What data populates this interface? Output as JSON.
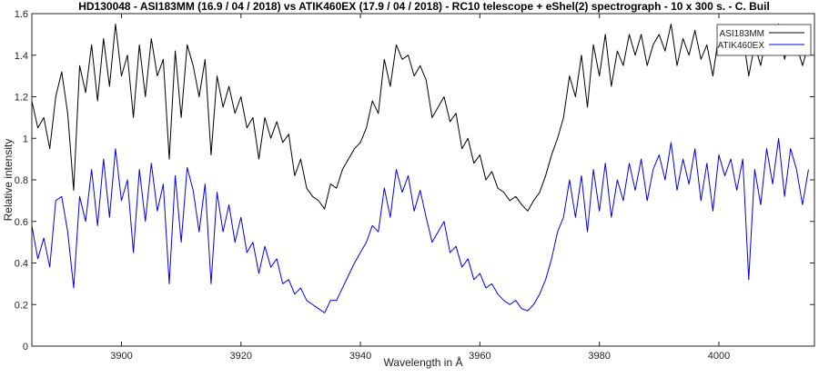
{
  "chart_data": {
    "type": "line",
    "title": "HD130048 - ASI183MM (16.9 / 04 / 2018) vs ATIK460EX (17.9 / 04 / 2018) - RC10 telescope + eShel(2) spectrograph - 10 x 300 s. - C. Buil",
    "xlabel": "Wavelength in Å",
    "ylabel": "Relative intensity",
    "xlim": [
      3885,
      4016
    ],
    "ylim": [
      0,
      1.6
    ],
    "xticks": [
      3900,
      3920,
      3940,
      3960,
      3980,
      4000
    ],
    "yticks": [
      0,
      0.2,
      0.4,
      0.6,
      0.8,
      1,
      1.2,
      1.4,
      1.6
    ],
    "xtick_labels": [
      "3900",
      "3920",
      "3940",
      "3960",
      "3980",
      "4000"
    ],
    "ytick_labels": [
      "0",
      "0.2",
      "0.4",
      "0.6",
      "0.8",
      "1",
      "1.2",
      "1.4",
      "1.6"
    ],
    "grid": false,
    "legend_position": "top-right",
    "series": [
      {
        "name": "ASI183MM",
        "color": "#000000",
        "x": [
          3885,
          3886,
          3887,
          3888,
          3889,
          3890,
          3891,
          3892,
          3893,
          3894,
          3895,
          3896,
          3897,
          3898,
          3899,
          3900,
          3901,
          3902,
          3903,
          3904,
          3905,
          3906,
          3907,
          3908,
          3909,
          3910,
          3911,
          3912,
          3913,
          3914,
          3915,
          3916,
          3917,
          3918,
          3919,
          3920,
          3921,
          3922,
          3923,
          3924,
          3925,
          3926,
          3927,
          3928,
          3929,
          3930,
          3931,
          3932,
          3933,
          3934,
          3935,
          3936,
          3937,
          3938,
          3939,
          3940,
          3941,
          3942,
          3943,
          3944,
          3945,
          3946,
          3947,
          3948,
          3949,
          3950,
          3951,
          3952,
          3953,
          3954,
          3955,
          3956,
          3957,
          3958,
          3959,
          3960,
          3961,
          3962,
          3963,
          3964,
          3965,
          3966,
          3967,
          3968,
          3969,
          3970,
          3971,
          3972,
          3973,
          3974,
          3975,
          3976,
          3977,
          3978,
          3979,
          3980,
          3981,
          3982,
          3983,
          3984,
          3985,
          3986,
          3987,
          3988,
          3989,
          3990,
          3991,
          3992,
          3993,
          3994,
          3995,
          3996,
          3997,
          3998,
          3999,
          4000,
          4001,
          4002,
          4003,
          4004,
          4005,
          4006,
          4007,
          4008,
          4009,
          4010,
          4011,
          4012,
          4013,
          4014,
          4015
        ],
        "values": [
          1.18,
          1.05,
          1.1,
          0.95,
          1.2,
          1.32,
          1.12,
          0.75,
          1.35,
          1.22,
          1.45,
          1.18,
          1.48,
          1.25,
          1.55,
          1.3,
          1.4,
          1.1,
          1.45,
          1.2,
          1.48,
          1.3,
          1.38,
          0.9,
          1.42,
          1.1,
          1.45,
          1.35,
          1.2,
          1.38,
          0.92,
          1.3,
          1.15,
          1.25,
          1.12,
          1.2,
          1.05,
          1.1,
          0.9,
          1.1,
          1.0,
          1.08,
          0.98,
          1.02,
          0.82,
          0.9,
          0.76,
          0.72,
          0.7,
          0.66,
          0.78,
          0.76,
          0.85,
          0.9,
          0.95,
          0.98,
          1.05,
          1.18,
          1.12,
          1.38,
          1.25,
          1.45,
          1.38,
          1.4,
          1.3,
          1.35,
          1.28,
          1.1,
          1.15,
          1.2,
          1.08,
          1.12,
          0.95,
          1.0,
          0.88,
          0.92,
          0.8,
          0.84,
          0.76,
          0.74,
          0.7,
          0.72,
          0.68,
          0.65,
          0.7,
          0.74,
          0.82,
          0.92,
          1.0,
          1.1,
          1.3,
          1.2,
          1.4,
          1.15,
          1.45,
          1.3,
          1.5,
          1.25,
          1.42,
          1.35,
          1.5,
          1.4,
          1.5,
          1.35,
          1.45,
          1.5,
          1.42,
          1.55,
          1.35,
          1.48,
          1.4,
          1.52,
          1.38,
          1.45,
          1.3,
          1.5,
          1.44,
          1.48,
          1.4,
          1.5,
          1.3,
          1.45,
          1.35,
          1.5,
          1.4,
          1.55,
          1.38,
          1.5,
          1.45,
          1.35,
          1.45
        ]
      },
      {
        "name": "ATIK460EX",
        "color": "#0000ee",
        "x": [
          3885,
          3886,
          3887,
          3888,
          3889,
          3890,
          3891,
          3892,
          3893,
          3894,
          3895,
          3896,
          3897,
          3898,
          3899,
          3900,
          3901,
          3902,
          3903,
          3904,
          3905,
          3906,
          3907,
          3908,
          3909,
          3910,
          3911,
          3912,
          3913,
          3914,
          3915,
          3916,
          3917,
          3918,
          3919,
          3920,
          3921,
          3922,
          3923,
          3924,
          3925,
          3926,
          3927,
          3928,
          3929,
          3930,
          3931,
          3932,
          3933,
          3934,
          3935,
          3936,
          3937,
          3938,
          3939,
          3940,
          3941,
          3942,
          3943,
          3944,
          3945,
          3946,
          3947,
          3948,
          3949,
          3950,
          3951,
          3952,
          3953,
          3954,
          3955,
          3956,
          3957,
          3958,
          3959,
          3960,
          3961,
          3962,
          3963,
          3964,
          3965,
          3966,
          3967,
          3968,
          3969,
          3970,
          3971,
          3972,
          3973,
          3974,
          3975,
          3976,
          3977,
          3978,
          3979,
          3980,
          3981,
          3982,
          3983,
          3984,
          3985,
          3986,
          3987,
          3988,
          3989,
          3990,
          3991,
          3992,
          3993,
          3994,
          3995,
          3996,
          3997,
          3998,
          3999,
          4000,
          4001,
          4002,
          4003,
          4004,
          4005,
          4006,
          4007,
          4008,
          4009,
          4010,
          4011,
          4012,
          4013,
          4014,
          4015
        ],
        "values": [
          0.58,
          0.42,
          0.52,
          0.38,
          0.7,
          0.72,
          0.55,
          0.28,
          0.72,
          0.6,
          0.85,
          0.58,
          0.9,
          0.62,
          0.95,
          0.7,
          0.8,
          0.45,
          0.85,
          0.6,
          0.88,
          0.65,
          0.78,
          0.3,
          0.82,
          0.5,
          0.86,
          0.75,
          0.55,
          0.78,
          0.3,
          0.74,
          0.55,
          0.68,
          0.5,
          0.62,
          0.45,
          0.5,
          0.35,
          0.48,
          0.38,
          0.42,
          0.3,
          0.32,
          0.25,
          0.28,
          0.22,
          0.2,
          0.18,
          0.16,
          0.22,
          0.22,
          0.28,
          0.34,
          0.4,
          0.45,
          0.5,
          0.58,
          0.55,
          0.76,
          0.62,
          0.85,
          0.74,
          0.82,
          0.65,
          0.75,
          0.62,
          0.5,
          0.55,
          0.6,
          0.45,
          0.48,
          0.38,
          0.42,
          0.32,
          0.35,
          0.28,
          0.3,
          0.25,
          0.22,
          0.2,
          0.22,
          0.18,
          0.17,
          0.2,
          0.25,
          0.32,
          0.42,
          0.55,
          0.62,
          0.8,
          0.62,
          0.82,
          0.55,
          0.85,
          0.65,
          0.88,
          0.62,
          0.8,
          0.7,
          0.88,
          0.75,
          0.9,
          0.7,
          0.85,
          0.92,
          0.8,
          0.98,
          0.75,
          0.9,
          0.78,
          0.95,
          0.7,
          0.88,
          0.65,
          0.92,
          0.82,
          0.9,
          0.75,
          0.9,
          0.32,
          0.85,
          0.68,
          0.95,
          0.78,
          1.0,
          0.72,
          0.95,
          0.85,
          0.68,
          0.85
        ]
      }
    ]
  }
}
